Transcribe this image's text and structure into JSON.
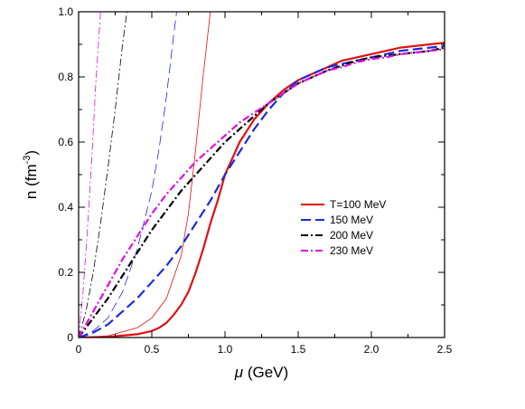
{
  "chart_data": {
    "type": "line",
    "xlabel_symbol": "μ",
    "xlabel_unit": " (GeV)",
    "ylabel_main": "n (fm",
    "ylabel_exp": "-3",
    "ylabel_close": ")",
    "xlim": [
      0,
      2.5
    ],
    "ylim": [
      0,
      1.0
    ],
    "xticks": [
      0,
      0.5,
      1.0,
      1.5,
      2.0,
      2.5
    ],
    "xtick_labels": [
      "0",
      "0.5",
      "1.0",
      "1.5",
      "2.0",
      "2.5"
    ],
    "yticks": [
      0,
      0.2,
      0.4,
      0.6,
      0.8,
      1.0
    ],
    "ytick_labels": [
      "0",
      "0.2",
      "0.4",
      "0.6",
      "0.8",
      "1.0"
    ],
    "grid": false,
    "legend_position": "right-middle",
    "series": [
      {
        "name": "T=100 MeV",
        "color": "#e01010",
        "dash": "solid",
        "x": [
          0,
          0.2,
          0.4,
          0.5,
          0.55,
          0.6,
          0.65,
          0.7,
          0.75,
          0.8,
          0.85,
          0.9,
          0.95,
          1.0,
          1.1,
          1.2,
          1.3,
          1.4,
          1.5,
          1.6,
          1.7,
          1.8,
          1.9,
          2.0,
          2.1,
          2.2,
          2.3,
          2.4,
          2.5
        ],
        "y": [
          0,
          0.002,
          0.01,
          0.02,
          0.03,
          0.045,
          0.07,
          0.1,
          0.14,
          0.2,
          0.27,
          0.35,
          0.42,
          0.5,
          0.6,
          0.67,
          0.72,
          0.76,
          0.79,
          0.81,
          0.83,
          0.85,
          0.86,
          0.87,
          0.88,
          0.89,
          0.895,
          0.9,
          0.905
        ]
      },
      {
        "name": "150 MeV",
        "color": "#1c2bd6",
        "dash": "dashed",
        "x": [
          0,
          0.1,
          0.2,
          0.3,
          0.4,
          0.5,
          0.6,
          0.7,
          0.8,
          0.9,
          1.0,
          1.1,
          1.2,
          1.3,
          1.4,
          1.5,
          1.6,
          1.7,
          1.8,
          1.9,
          2.0,
          2.1,
          2.2,
          2.3,
          2.4,
          2.5
        ],
        "y": [
          0,
          0.015,
          0.04,
          0.08,
          0.12,
          0.17,
          0.22,
          0.28,
          0.35,
          0.42,
          0.5,
          0.57,
          0.64,
          0.7,
          0.75,
          0.79,
          0.81,
          0.83,
          0.84,
          0.85,
          0.86,
          0.87,
          0.88,
          0.885,
          0.89,
          0.895
        ]
      },
      {
        "name": "200 MeV",
        "color": "#000000",
        "dash": "dashdot",
        "x": [
          0,
          0.1,
          0.2,
          0.3,
          0.4,
          0.5,
          0.6,
          0.7,
          0.8,
          0.9,
          1.0,
          1.1,
          1.2,
          1.3,
          1.4,
          1.5,
          1.6,
          1.7,
          1.8,
          1.9,
          2.0,
          2.1,
          2.2,
          2.3,
          2.4,
          2.5
        ],
        "y": [
          0,
          0.06,
          0.12,
          0.19,
          0.26,
          0.33,
          0.39,
          0.45,
          0.5,
          0.55,
          0.6,
          0.64,
          0.68,
          0.72,
          0.75,
          0.78,
          0.8,
          0.82,
          0.835,
          0.85,
          0.86,
          0.865,
          0.87,
          0.875,
          0.88,
          0.89
        ]
      },
      {
        "name": "230 MeV",
        "color": "#e010e0",
        "dash": "dashdot",
        "x": [
          0,
          0.1,
          0.2,
          0.3,
          0.4,
          0.5,
          0.6,
          0.7,
          0.8,
          0.9,
          1.0,
          1.1,
          1.2,
          1.3,
          1.4,
          1.5,
          1.6,
          1.7,
          1.8,
          1.9,
          2.0,
          2.1,
          2.2,
          2.3,
          2.4,
          2.5
        ],
        "y": [
          0,
          0.08,
          0.16,
          0.24,
          0.31,
          0.38,
          0.44,
          0.49,
          0.54,
          0.58,
          0.62,
          0.66,
          0.69,
          0.72,
          0.75,
          0.78,
          0.8,
          0.82,
          0.83,
          0.845,
          0.855,
          0.86,
          0.87,
          0.875,
          0.88,
          0.885
        ]
      }
    ],
    "thin_curves": [
      {
        "color": "#e01010",
        "dash": "solid",
        "x": [
          0,
          0.2,
          0.4,
          0.5,
          0.6,
          0.7,
          0.75,
          0.8,
          0.85,
          0.9
        ],
        "y": [
          0,
          0.005,
          0.03,
          0.06,
          0.12,
          0.25,
          0.38,
          0.58,
          0.8,
          1.0
        ]
      },
      {
        "color": "#1c2bd6",
        "dash": "dashed",
        "x": [
          0,
          0.1,
          0.2,
          0.3,
          0.4,
          0.5,
          0.55,
          0.6,
          0.65,
          0.67
        ],
        "y": [
          0,
          0.02,
          0.06,
          0.14,
          0.27,
          0.45,
          0.58,
          0.74,
          0.93,
          1.0
        ]
      },
      {
        "color": "#000000",
        "dash": "dashdot",
        "x": [
          0,
          0.05,
          0.1,
          0.15,
          0.2,
          0.25,
          0.3,
          0.33
        ],
        "y": [
          0,
          0.08,
          0.2,
          0.35,
          0.52,
          0.7,
          0.9,
          1.0
        ]
      },
      {
        "color": "#e010e0",
        "dash": "dashdot",
        "x": [
          0,
          0.03,
          0.06,
          0.09,
          0.12,
          0.15
        ],
        "y": [
          0,
          0.14,
          0.33,
          0.55,
          0.8,
          1.0
        ]
      }
    ]
  }
}
